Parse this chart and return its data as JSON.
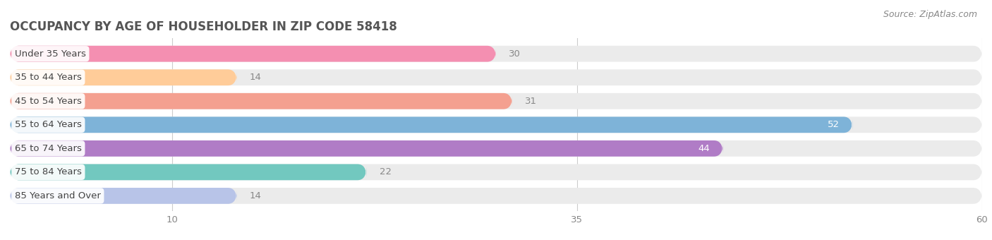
{
  "title": "OCCUPANCY BY AGE OF HOUSEHOLDER IN ZIP CODE 58418",
  "source": "Source: ZipAtlas.com",
  "categories": [
    "Under 35 Years",
    "35 to 44 Years",
    "45 to 54 Years",
    "55 to 64 Years",
    "65 to 74 Years",
    "75 to 84 Years",
    "85 Years and Over"
  ],
  "values": [
    30,
    14,
    31,
    52,
    44,
    22,
    14
  ],
  "bar_colors": [
    "#F48FB1",
    "#FFCC99",
    "#F4A090",
    "#7EB3D8",
    "#B07CC6",
    "#72C8BF",
    "#B8C4E8"
  ],
  "bar_bg_color": "#EBEBEB",
  "xlim": [
    0,
    60
  ],
  "xticks": [
    10,
    35,
    60
  ],
  "bar_height": 0.68,
  "title_color": "#555555",
  "title_fontsize": 12,
  "source_color": "#888888",
  "source_fontsize": 9,
  "category_fontsize": 9.5,
  "value_fontsize": 9.5,
  "value_inside_color": "#FFFFFF",
  "value_outside_color": "#888888",
  "inside_threshold": 35
}
